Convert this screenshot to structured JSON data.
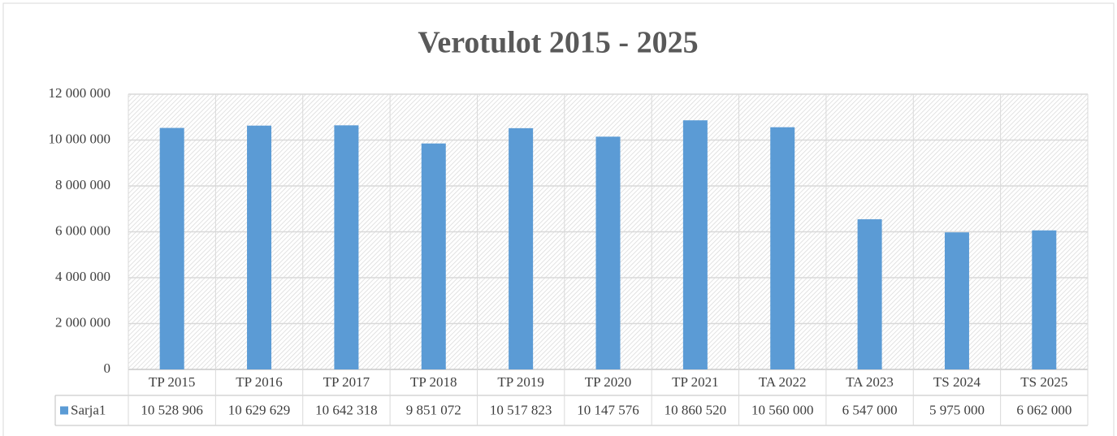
{
  "chart_data": {
    "type": "bar",
    "title": "Verotulot 2015 - 2025",
    "categories": [
      "TP 2015",
      "TP 2016",
      "TP 2017",
      "TP 2018",
      "TP 2019",
      "TP 2020",
      "TP 2021",
      "TA 2022",
      "TA 2023",
      "TS 2024",
      "TS 2025"
    ],
    "series": [
      {
        "name": "Sarja1",
        "color": "#5b9bd5",
        "values": [
          10528906,
          10629629,
          10642318,
          9851072,
          10517823,
          10147576,
          10860520,
          10560000,
          6547000,
          5975000,
          6062000
        ],
        "value_labels": [
          "10 528 906",
          "10 629 629",
          "10 642 318",
          "9 851 072",
          "10 517 823",
          "10 147 576",
          "10 860 520",
          "10 560 000",
          "6 547 000",
          "5 975 000",
          "6 062 000"
        ]
      }
    ],
    "ylim": [
      0,
      12000000
    ],
    "yticks": [
      0,
      {
        "value": 2000000,
        "label": "2 000 000"
      },
      {
        "value": 4000000,
        "label": "4 000 000"
      },
      {
        "value": 6000000,
        "label": "6 000 000"
      },
      {
        "value": 8000000,
        "label": "8 000 000"
      },
      {
        "value": 10000000,
        "label": "10 000 000"
      },
      {
        "value": 12000000,
        "label": "12 000 000"
      }
    ],
    "grid": true
  }
}
